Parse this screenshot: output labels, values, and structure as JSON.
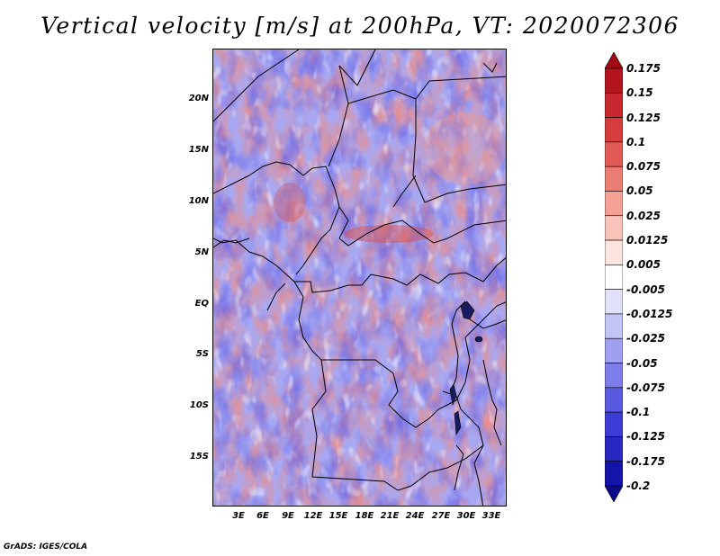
{
  "title": "Vertical velocity [m/s] at 200hPa, VT: 2020072306",
  "credit": "GrADS: IGES/COLA",
  "map": {
    "lat_labels": [
      "20N",
      "15N",
      "10N",
      "5N",
      "EQ",
      "5S",
      "10S",
      "15S"
    ],
    "lon_labels": [
      "3E",
      "6E",
      "9E",
      "12E",
      "15E",
      "18E",
      "21E",
      "24E",
      "27E",
      "30E",
      "33E"
    ],
    "field": "vertical velocity",
    "level": "200hPa",
    "valid_time": "2020072306"
  },
  "colorbar": {
    "labels": [
      "0.175",
      "0.15",
      "0.125",
      "0.1",
      "0.075",
      "0.05",
      "0.025",
      "0.0125",
      "0.005",
      "-0.005",
      "-0.0125",
      "-0.025",
      "-0.05",
      "-0.075",
      "-0.1",
      "-0.125",
      "-0.175",
      "-0.2"
    ],
    "colors": [
      "#a00a14",
      "#b4141e",
      "#c8282d",
      "#d73c3c",
      "#e15a55",
      "#eb7d73",
      "#f5a096",
      "#fac3b9",
      "#fde4de",
      "#ffffff",
      "#e1e1fa",
      "#c3c3f5",
      "#a0a0f0",
      "#7d7deb",
      "#5a5ae1",
      "#3c3cd7",
      "#2828c3",
      "#1414aa",
      "#0a0a8c"
    ]
  }
}
